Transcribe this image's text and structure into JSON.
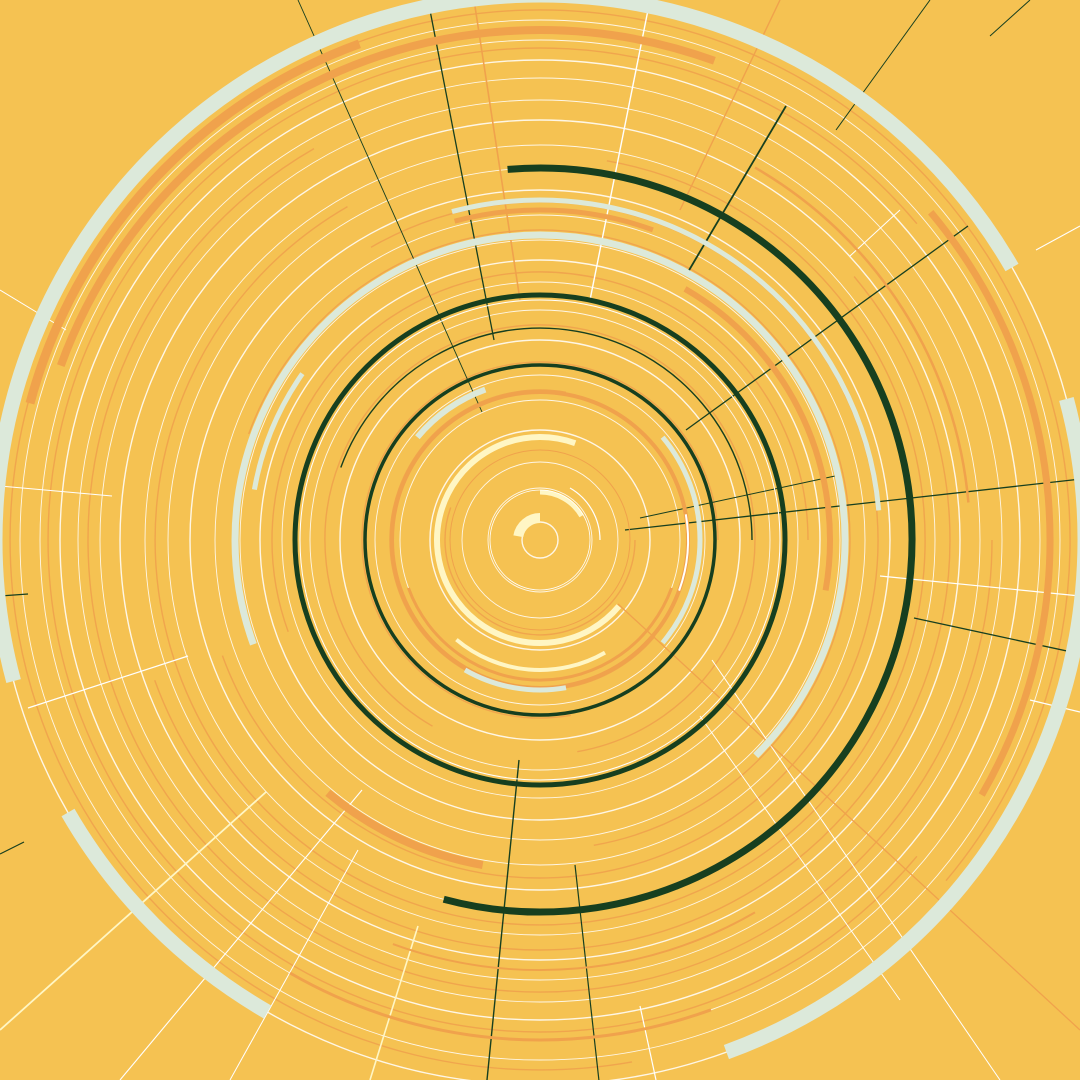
{
  "artwork": {
    "kind": "abstract concentric arcs",
    "colors": {
      "background": "#f5c252",
      "dark_green": "#173f1f",
      "orange": "#f0a24c",
      "pale_mint": "#dce9da",
      "white": "#ffffff",
      "cream": "#fff6c4"
    }
  }
}
